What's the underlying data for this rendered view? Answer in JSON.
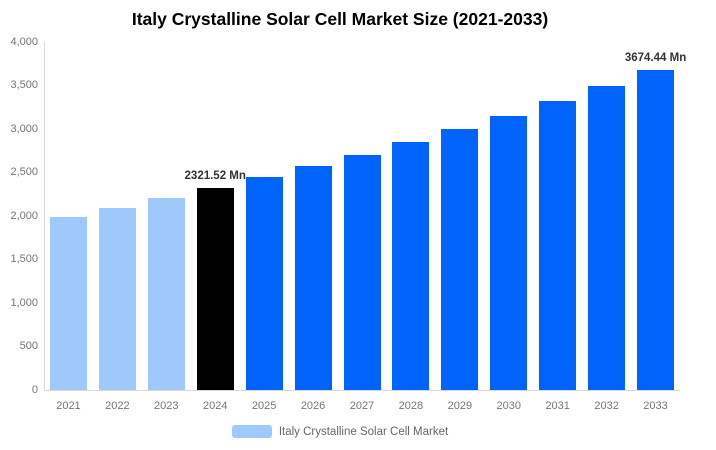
{
  "chart_data": {
    "type": "bar",
    "title": "Italy Crystalline Solar Cell Market Size (2021-2033)",
    "xlabel": "",
    "ylabel": "",
    "unit": "Mn",
    "categories": [
      "2021",
      "2022",
      "2023",
      "2024",
      "2025",
      "2026",
      "2027",
      "2028",
      "2029",
      "2030",
      "2031",
      "2032",
      "2033"
    ],
    "values": [
      1990,
      2095,
      2205,
      2321.52,
      2445,
      2570,
      2705,
      2845,
      2995,
      3155,
      3320,
      3490,
      3674.44
    ],
    "bar_color_roles": [
      "historical",
      "historical",
      "historical",
      "highlight",
      "forecast",
      "forecast",
      "forecast",
      "forecast",
      "forecast",
      "forecast",
      "forecast",
      "forecast",
      "forecast"
    ],
    "ylim": [
      0,
      4000
    ],
    "yticks": [
      0,
      500,
      1000,
      1500,
      2000,
      2500,
      3000,
      3500,
      4000
    ],
    "ytick_labels": [
      "0",
      "500",
      "1,000",
      "1,500",
      "2,000",
      "2,500",
      "3,000",
      "3,500",
      "4,000"
    ],
    "grid": false,
    "data_labels": [
      {
        "category": "2024",
        "text": "2321.52 Mn"
      },
      {
        "category": "2033",
        "text": "3674.44 Mn"
      }
    ],
    "colors": {
      "historical": "#9fc9fb",
      "highlight": "#000000",
      "forecast": "#0064fa",
      "axis_line": "#d9d9d9",
      "tick_label": "#757575",
      "title": "#000000",
      "data_label": "#333333",
      "legend_text": "#666666"
    },
    "legend": {
      "position": "bottom",
      "items": [
        {
          "label": "Italy Crystalline Solar Cell Market",
          "swatch_color": "#9fc9fb"
        }
      ]
    }
  }
}
